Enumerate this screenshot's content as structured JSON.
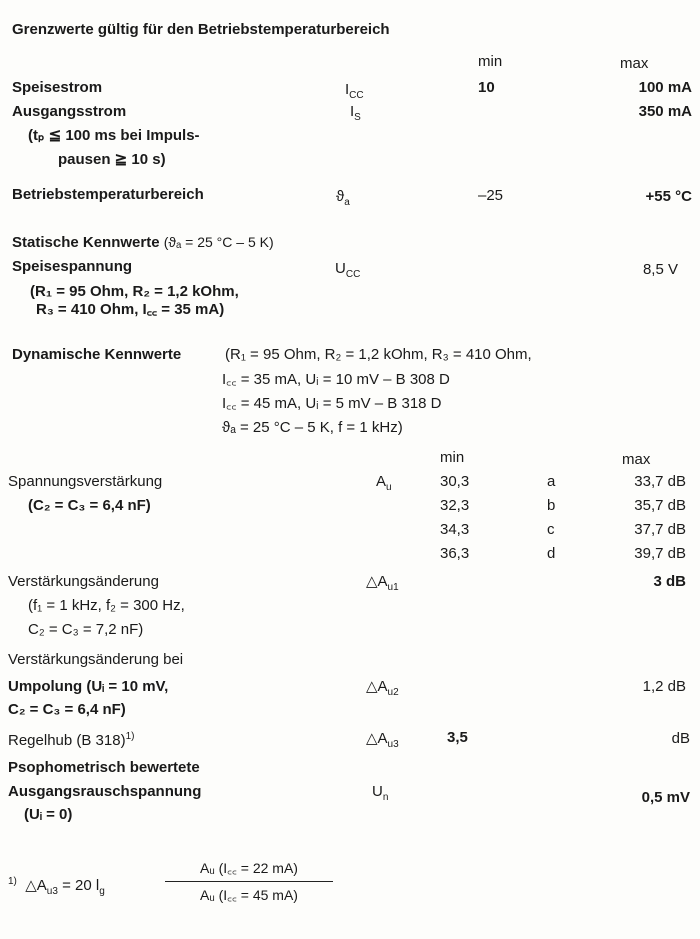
{
  "title": "Grenzwerte gültig für den Betriebstemperaturbereich",
  "limits": {
    "col_min": "min",
    "col_max": "max",
    "supply_current": {
      "label": "Speisestrom",
      "sym": "I",
      "sym_sub": "CC",
      "min": "10",
      "max": "100 mA"
    },
    "output_current": {
      "label": "Ausgangsstrom",
      "sym": "I",
      "sym_sub": "S",
      "max": "350 mA",
      "cond1": "(tₚ ≦ 100 ms bei Impuls-",
      "cond2": "pausen ≧ 10 s)"
    },
    "temp_range": {
      "label": "Betriebstemperaturbereich",
      "sym": "ϑ",
      "sym_sub": "a",
      "min": "–25",
      "max": "+55 °C"
    }
  },
  "static": {
    "heading": "Statische Kennwerte",
    "heading_cond": "(ϑₐ = 25 °C – 5 K)",
    "supply_voltage": {
      "label": "Speisespannung",
      "sym": "U",
      "sym_sub": "CC",
      "max": "8,5 V",
      "cond1": "(R₁ = 95 Ohm, R₂ = 1,2 kOhm,",
      "cond2": "R₃ = 410 Ohm, I꜀꜀ = 35 mA)"
    }
  },
  "dynamic": {
    "heading": "Dynamische Kennwerte",
    "cond1": "(R₁ = 95 Ohm, R₂ = 1,2 kOhm, R₃ = 410 Ohm,",
    "cond2": "I꜀꜀ = 35 mA, Uᵢ = 10 mV – B 308 D",
    "cond3": "I꜀꜀ = 45 mA, Uᵢ =  5 mV – B 318 D",
    "cond4": "ϑₐ = 25 °C – 5 K, f = 1 kHz)",
    "col_min": "min",
    "col_max": "max",
    "gain": {
      "label": "Spannungsverstärkung",
      "cond": "(C₂ = C₃ = 6,4 nF)",
      "sym": "A",
      "sym_sub": "u",
      "rows": [
        {
          "min": "30,3",
          "group": "a",
          "max": "33,7 dB"
        },
        {
          "min": "32,3",
          "group": "b",
          "max": "35,7 dB"
        },
        {
          "min": "34,3",
          "group": "c",
          "max": "37,7 dB"
        },
        {
          "min": "36,3",
          "group": "d",
          "max": "39,7 dB"
        }
      ]
    },
    "gain_change": {
      "label": "Verstärkungsänderung",
      "cond1": "(f₁ = 1 kHz, f₂ = 300 Hz,",
      "cond2": "C₂ = C₃ = 7,2 nF)",
      "sym": "△A",
      "sym_sub": "u1",
      "max": "3 dB"
    },
    "gain_change_pol": {
      "label1": "Verstärkungsänderung bei",
      "label2": "Umpolung (Uᵢ = 10 mV,",
      "label3": "C₂ = C₃ = 6,4 nF)",
      "sym": "△A",
      "sym_sub": "u2",
      "max": "1,2 dB"
    },
    "control_range": {
      "label": "Regelhub (B 318)",
      "footnote_mark": "1)",
      "sym": "△A",
      "sym_sub": "u3",
      "min": "3,5",
      "unit": "dB"
    },
    "noise": {
      "label1": "Psophometrisch bewertete",
      "label2": "Ausgangsrauschspannung",
      "cond": "(Uᵢ = 0)",
      "sym": "U",
      "sym_sub": "n",
      "max": "0,5 mV"
    }
  },
  "footnote": {
    "mark": "1)",
    "lhs": "△A",
    "lhs_sub": "u3",
    "eq": "= 20 l",
    "eq_sub": "g",
    "numerator": "Aᵤ (I꜀꜀ = 22 mA)",
    "denominator": "Aᵤ (I꜀꜀ = 45 mA)"
  }
}
